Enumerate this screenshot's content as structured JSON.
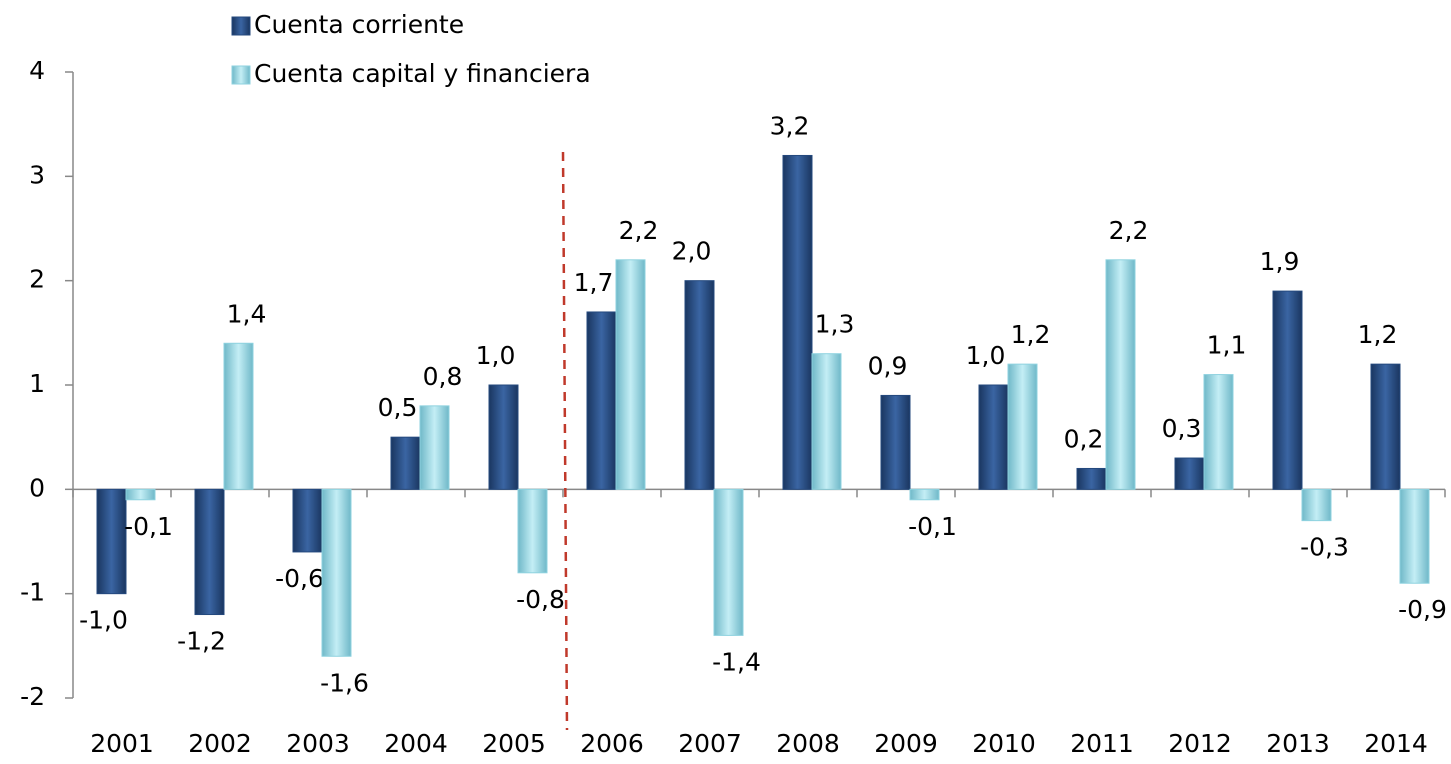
{
  "chart_data": {
    "type": "bar",
    "categories": [
      "2001",
      "2002",
      "2003",
      "2004",
      "2005",
      "2006",
      "2007",
      "2008",
      "2009",
      "2010",
      "2011",
      "2012",
      "2013",
      "2014"
    ],
    "series": [
      {
        "name": "Cuenta corriente",
        "color": "#24497e",
        "values": [
          -1.0,
          -1.2,
          -0.6,
          0.5,
          1.0,
          1.7,
          2.0,
          3.2,
          0.9,
          1.0,
          0.2,
          0.3,
          1.9,
          1.2
        ],
        "value_labels": [
          "-1,0",
          "-1,2",
          "-0,6",
          "0,5",
          "1,0",
          "1,7",
          "2,0",
          "3,2",
          "0,9",
          "1,0",
          "0,2",
          "0,3",
          "1,9",
          "1,2"
        ]
      },
      {
        "name": "Cuenta capital y financiera",
        "color": "#8ed2df",
        "values": [
          -0.1,
          1.4,
          -1.6,
          0.8,
          -0.8,
          2.2,
          -1.4,
          1.3,
          -0.1,
          1.2,
          2.2,
          1.1,
          -0.3,
          -0.9
        ],
        "value_labels": [
          "-0,1",
          "1,4",
          "-1,6",
          "0,8",
          "-0,8",
          "2,2",
          "-1,4",
          "1,3",
          "-0,1",
          "1,2",
          "2,2",
          "1,1",
          "-0,3",
          "-0,9"
        ]
      }
    ],
    "ylim": [
      -2,
      4
    ],
    "yticks": [
      -2,
      -1,
      0,
      1,
      2,
      3,
      4
    ],
    "grid": false
  }
}
